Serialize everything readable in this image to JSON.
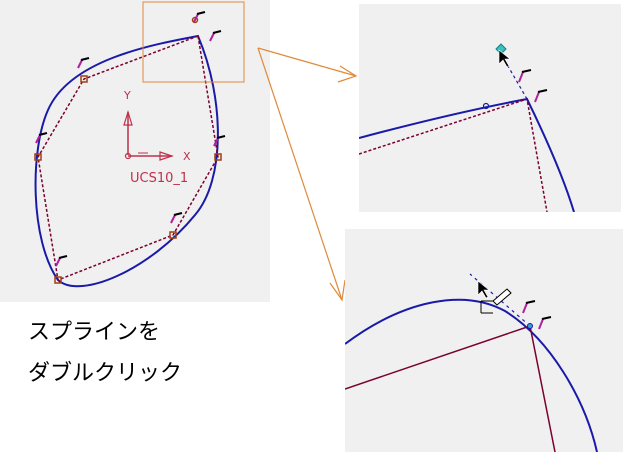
{
  "coordinate_system": {
    "name": "UCS10_1",
    "x_axis_label": "X",
    "y_axis_label": "Y"
  },
  "caption": {
    "line1": "スプラインを",
    "line2": "ダブルクリック"
  },
  "colors": {
    "spline": "#1a1aa8",
    "control_polygon": "#7a0030",
    "pin_marker": "#b0209a",
    "zoom_frame": "#e08a3a",
    "callout_arrow": "#e08a3a",
    "ucs": "#c0304a",
    "selected_point": "#39c0c0"
  },
  "icons": [
    "pin-marker-icon",
    "ucs-triad-icon",
    "mouse-cursor-icon",
    "pen-cursor-icon",
    "control-point-icon"
  ]
}
